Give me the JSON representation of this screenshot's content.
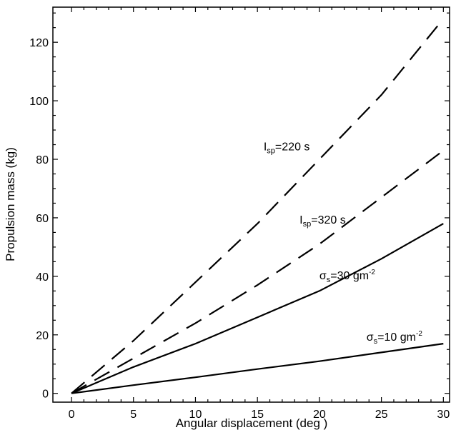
{
  "chart_data": {
    "type": "line",
    "xlabel": "Angular displacement  (deg )",
    "ylabel": "Propulsion mass (kg)",
    "xlim": [
      -1.5,
      30.5
    ],
    "ylim": [
      -3,
      132
    ],
    "x_ticks": [
      0,
      5,
      10,
      15,
      20,
      25,
      30
    ],
    "y_ticks": [
      0,
      20,
      40,
      60,
      80,
      100,
      120
    ],
    "x_tick_labels": [
      "0",
      "5",
      "10",
      "15",
      "20",
      "25",
      "30"
    ],
    "y_tick_labels": [
      "0",
      "20",
      "40",
      "60",
      "80",
      "100",
      "120"
    ],
    "grid": false,
    "legend": "none",
    "series": [
      {
        "style": "dashed",
        "color": "#000000",
        "x": [
          0,
          5,
          10,
          15,
          20,
          25,
          30
        ],
        "y": [
          0,
          18,
          38,
          58,
          80,
          102,
          128
        ]
      },
      {
        "style": "dashed",
        "color": "#000000",
        "x": [
          0,
          5,
          10,
          15,
          20,
          25,
          30
        ],
        "y": [
          0,
          12,
          24,
          37,
          51,
          67,
          83
        ]
      },
      {
        "style": "solid",
        "color": "#000000",
        "x": [
          0,
          5,
          10,
          15,
          20,
          25,
          30
        ],
        "y": [
          0,
          9,
          17,
          26,
          35,
          46,
          58
        ]
      },
      {
        "style": "solid",
        "color": "#000000",
        "x": [
          0,
          5,
          10,
          15,
          20,
          25,
          30
        ],
        "y": [
          0,
          2.8,
          5.5,
          8.3,
          11,
          14,
          17
        ]
      }
    ],
    "annotations": [
      {
        "base": "I",
        "sub": "sp",
        "sup": "",
        "rest": "=220 s",
        "x": 15.5,
        "y": 83
      },
      {
        "base": "I",
        "sub": "sp",
        "sup": "",
        "rest": "=320 s",
        "x": 18.4,
        "y": 58
      },
      {
        "base": "σ",
        "sub": "s",
        "sup": "-2",
        "rest": "=30 gm",
        "x": 20.0,
        "y": 39
      },
      {
        "base": "σ",
        "sub": "s",
        "sup": "-2",
        "rest": "=10 gm",
        "x": 23.8,
        "y": 18
      }
    ]
  }
}
